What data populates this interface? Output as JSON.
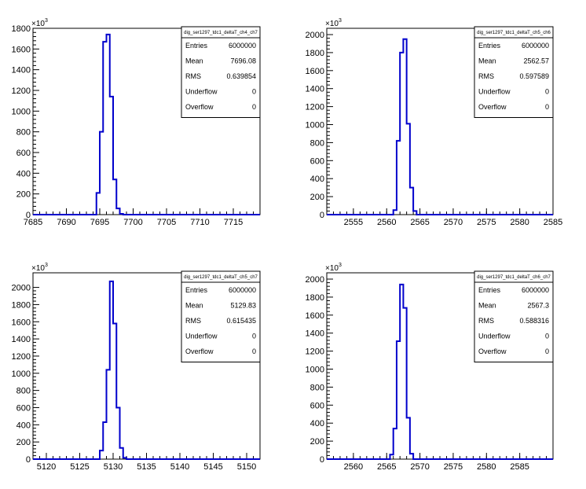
{
  "chart_data": [
    {
      "type": "histogram",
      "title": "",
      "stats_name": "dig_ser1297_tdc1_deltaT_ch4_ch7",
      "xlim": [
        7685,
        7719
      ],
      "ylim": [
        0,
        1800
      ],
      "x_ticks": [
        7685,
        7690,
        7695,
        7700,
        7705,
        7710,
        7715
      ],
      "y_ticks": [
        0,
        200,
        400,
        600,
        800,
        1000,
        1200,
        1400,
        1600,
        1800
      ],
      "y_tick_labels": [
        "0",
        "200",
        "400",
        "600",
        "800",
        "1000",
        "1200",
        "1400",
        "1600",
        "1800"
      ],
      "y_multiplier": "×10",
      "y_multiplier_exp": "3",
      "bin_width": 0.5,
      "bins": [
        [
          7694.5,
          210
        ],
        [
          7695.0,
          800
        ],
        [
          7695.5,
          1670
        ],
        [
          7696.0,
          1740
        ],
        [
          7696.5,
          1140
        ],
        [
          7697.0,
          340
        ],
        [
          7697.5,
          60
        ],
        [
          7698.0,
          8
        ]
      ],
      "stats": [
        {
          "label": "Entries",
          "value": "6000000"
        },
        {
          "label": "Mean",
          "value": "7696.08"
        },
        {
          "label": "RMS",
          "value": "0.639854"
        },
        {
          "label": "Underflow",
          "value": "0"
        },
        {
          "label": "Overflow",
          "value": "0"
        }
      ]
    },
    {
      "type": "histogram",
      "title": "",
      "stats_name": "dig_ser1297_tdc1_deltaT_ch5_ch6",
      "xlim": [
        2551,
        2585
      ],
      "ylim": [
        0,
        2070
      ],
      "x_ticks": [
        2555,
        2560,
        2565,
        2570,
        2575,
        2580,
        2585
      ],
      "y_ticks": [
        0,
        200,
        400,
        600,
        800,
        1000,
        1200,
        1400,
        1600,
        1800,
        2000
      ],
      "y_tick_labels": [
        "0",
        "200",
        "400",
        "600",
        "800",
        "1000",
        "1200",
        "1400",
        "1600",
        "1800",
        "2000"
      ],
      "y_multiplier": "×10",
      "y_multiplier_exp": "3",
      "bin_width": 0.5,
      "bins": [
        [
          2561.0,
          50
        ],
        [
          2561.5,
          820
        ],
        [
          2562.0,
          1800
        ],
        [
          2562.5,
          1950
        ],
        [
          2563.0,
          1010
        ],
        [
          2563.5,
          300
        ],
        [
          2564.0,
          40
        ]
      ],
      "stats": [
        {
          "label": "Entries",
          "value": "6000000"
        },
        {
          "label": "Mean",
          "value": "2562.57"
        },
        {
          "label": "RMS",
          "value": "0.597589"
        },
        {
          "label": "Underflow",
          "value": "0"
        },
        {
          "label": "Overflow",
          "value": "0"
        }
      ]
    },
    {
      "type": "histogram",
      "title": "",
      "stats_name": "dig_ser1297_tdc1_deltaT_ch5_ch7",
      "xlim": [
        5118,
        5152
      ],
      "ylim": [
        0,
        2170
      ],
      "x_ticks": [
        5120,
        5125,
        5130,
        5135,
        5140,
        5145,
        5150
      ],
      "y_ticks": [
        0,
        200,
        400,
        600,
        800,
        1000,
        1200,
        1400,
        1600,
        1800,
        2000
      ],
      "y_tick_labels": [
        "0",
        "200",
        "400",
        "600",
        "800",
        "1000",
        "1200",
        "1400",
        "1600",
        "1800",
        "2000"
      ],
      "y_multiplier": "×10",
      "y_multiplier_exp": "3",
      "bin_width": 0.5,
      "bins": [
        [
          5128.0,
          100
        ],
        [
          5128.5,
          430
        ],
        [
          5129.0,
          1040
        ],
        [
          5129.5,
          2070
        ],
        [
          5130.0,
          1580
        ],
        [
          5130.5,
          600
        ],
        [
          5131.0,
          130
        ],
        [
          5131.5,
          15
        ]
      ],
      "stats": [
        {
          "label": "Entries",
          "value": "6000000"
        },
        {
          "label": "Mean",
          "value": "5129.83"
        },
        {
          "label": "RMS",
          "value": "0.615435"
        },
        {
          "label": "Underflow",
          "value": "0"
        },
        {
          "label": "Overflow",
          "value": "0"
        }
      ]
    },
    {
      "type": "histogram",
      "title": "",
      "stats_name": "dig_ser1297_tdc1_deltaT_ch6_ch7",
      "xlim": [
        2556,
        2590
      ],
      "ylim": [
        0,
        2070
      ],
      "x_ticks": [
        2560,
        2565,
        2570,
        2575,
        2580,
        2585
      ],
      "y_ticks": [
        0,
        200,
        400,
        600,
        800,
        1000,
        1200,
        1400,
        1600,
        1800,
        2000
      ],
      "y_tick_labels": [
        "0",
        "200",
        "400",
        "600",
        "800",
        "1000",
        "1200",
        "1400",
        "1600",
        "1800",
        "2000"
      ],
      "y_multiplier": "×10",
      "y_multiplier_exp": "3",
      "bin_width": 0.5,
      "bins": [
        [
          2565.5,
          50
        ],
        [
          2566.0,
          340
        ],
        [
          2566.5,
          1310
        ],
        [
          2567.0,
          1940
        ],
        [
          2567.5,
          1680
        ],
        [
          2568.0,
          460
        ],
        [
          2568.5,
          60
        ]
      ],
      "stats": [
        {
          "label": "Entries",
          "value": "6000000"
        },
        {
          "label": "Mean",
          "value": "2567.3"
        },
        {
          "label": "RMS",
          "value": "0.588316"
        },
        {
          "label": "Underflow",
          "value": "0"
        },
        {
          "label": "Overflow",
          "value": "0"
        }
      ]
    }
  ]
}
